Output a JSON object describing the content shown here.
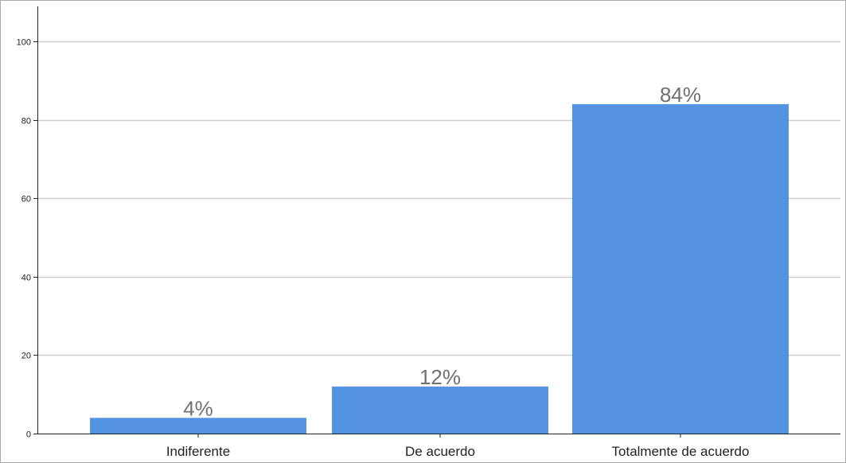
{
  "chart_data": {
    "type": "bar",
    "categories": [
      "Indiferente",
      "De acuerdo",
      "Totalmente de acuerdo"
    ],
    "values": [
      4,
      12,
      84
    ],
    "data_labels": [
      "4%",
      "12%",
      "84%"
    ],
    "y_ticks": [
      "0",
      "20",
      "40",
      "60",
      "80",
      "100"
    ],
    "ylim": [
      0,
      100
    ],
    "grid": true,
    "legend": "none",
    "title": "",
    "xlabel": "",
    "ylabel": "",
    "bar_color": "#5393e1",
    "grid_color": "#cccccc",
    "axis_color": "#222222"
  }
}
